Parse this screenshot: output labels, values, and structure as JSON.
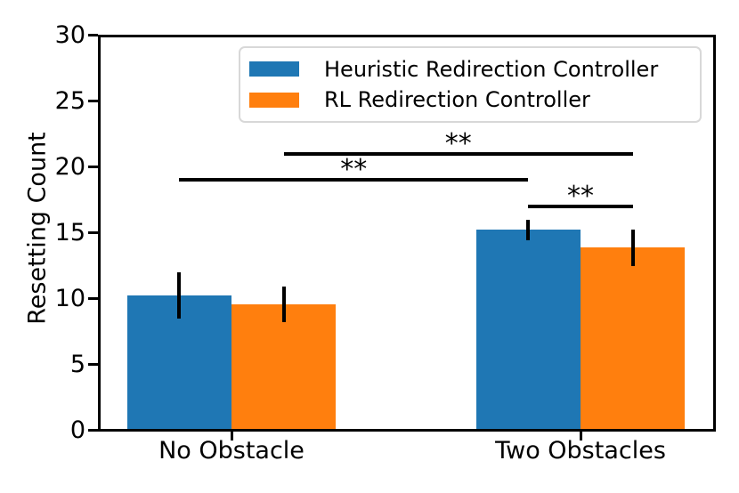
{
  "chart_data": {
    "type": "bar",
    "title": "",
    "xlabel": "",
    "ylabel": "Resetting Count",
    "ylim": [
      0,
      30
    ],
    "yticks": [
      0,
      5,
      10,
      15,
      20,
      25,
      30
    ],
    "grid": false,
    "legend_position": "upper right",
    "categories": [
      "No Obstacle",
      "Two Obstacles"
    ],
    "series": [
      {
        "name": "Heuristic Redirection Controller",
        "color": "#1f77b4",
        "values": [
          10.2,
          15.2
        ],
        "errors": [
          1.75,
          0.8
        ]
      },
      {
        "name": "RL Redirection Controller",
        "color": "#ff7f0e",
        "values": [
          9.55,
          13.85
        ],
        "errors": [
          1.35,
          1.4
        ]
      }
    ],
    "significance_brackets": [
      {
        "label": "**",
        "from": {
          "category": 0,
          "series": 1
        },
        "to": {
          "category": 1,
          "series": 1
        },
        "height": 21
      },
      {
        "label": "**",
        "from": {
          "category": 0,
          "series": 0
        },
        "to": {
          "category": 1,
          "series": 0
        },
        "height": 19
      },
      {
        "label": "**",
        "from": {
          "category": 1,
          "series": 0
        },
        "to": {
          "category": 1,
          "series": 1
        },
        "height": 17
      }
    ],
    "error_bar_color": "#000000",
    "bracket_color": "#000000",
    "axis_color": "#000000",
    "background_color": "#ffffff"
  }
}
